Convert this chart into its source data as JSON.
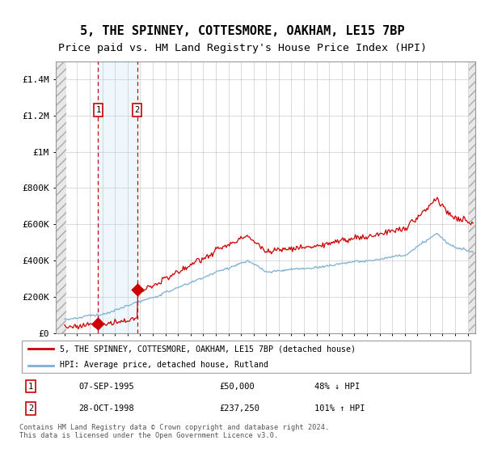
{
  "title": "5, THE SPINNEY, COTTESMORE, OAKHAM, LE15 7BP",
  "subtitle": "Price paid vs. HM Land Registry's House Price Index (HPI)",
  "sale1_date": "07-SEP-1995",
  "sale1_price": 50000,
  "sale1_label_price": 50000,
  "sale1_hpi_pct": "48% ↓ HPI",
  "sale2_date": "28-OCT-1998",
  "sale2_price": 237250,
  "sale2_hpi_pct": "101% ↑ HPI",
  "legend_line1": "5, THE SPINNEY, COTTESMORE, OAKHAM, LE15 7BP (detached house)",
  "legend_line2": "HPI: Average price, detached house, Rutland",
  "footer": "Contains HM Land Registry data © Crown copyright and database right 2024.\nThis data is licensed under the Open Government Licence v3.0.",
  "sale_line_color": "#cc0000",
  "hpi_line_color": "#7bafd4",
  "ylim_min": 0,
  "ylim_max": 1500000,
  "title_fontsize": 11,
  "subtitle_fontsize": 9.5
}
